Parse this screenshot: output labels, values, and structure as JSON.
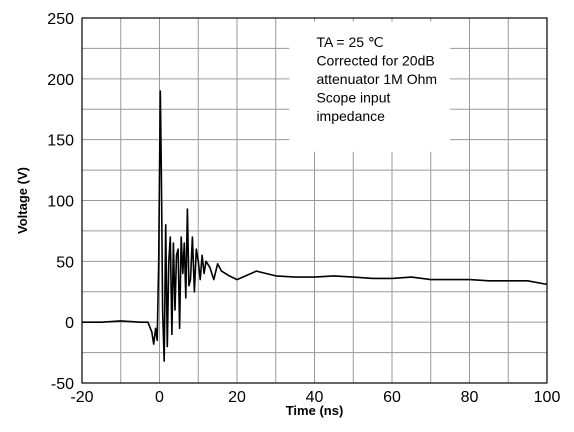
{
  "chart_data": {
    "type": "line",
    "title": "",
    "xlabel": "Time  (ns)",
    "ylabel": "Voltage (V)",
    "xlim": [
      -20,
      100
    ],
    "ylim": [
      -50,
      250
    ],
    "xticks": [
      -20,
      0,
      20,
      40,
      60,
      80,
      100
    ],
    "yticks": [
      -50,
      0,
      50,
      100,
      150,
      200,
      250
    ],
    "xgrid_step": 10,
    "ygrid_step": 25,
    "grid": true,
    "annotation": [
      "TA = 25 ℃",
      "Corrected for 20dB",
      "attenuator 1M Ohm",
      "Scope input",
      "impedance"
    ],
    "series": [
      {
        "color": "#000000",
        "x": [
          -20,
          -15,
          -10,
          -5,
          -3,
          -2,
          -1.5,
          -1,
          -0.6,
          -0.2,
          0.2,
          0.5,
          0.8,
          1.2,
          1.6,
          2,
          2.4,
          2.8,
          3.2,
          3.6,
          4,
          4.4,
          4.8,
          5.2,
          5.6,
          6,
          6.4,
          6.8,
          7.2,
          7.6,
          8,
          8.5,
          9,
          9.5,
          10,
          10.5,
          11,
          11.5,
          12,
          13,
          14,
          15,
          16,
          18,
          20,
          25,
          30,
          35,
          40,
          45,
          50,
          55,
          60,
          65,
          70,
          75,
          80,
          85,
          90,
          95,
          100
        ],
        "y": [
          0,
          0,
          1,
          0,
          0,
          -8,
          -18,
          -5,
          -15,
          50,
          190,
          120,
          10,
          -32,
          80,
          -20,
          50,
          70,
          -10,
          65,
          10,
          55,
          60,
          -5,
          70,
          40,
          65,
          20,
          93,
          30,
          35,
          70,
          25,
          60,
          50,
          35,
          55,
          40,
          50,
          45,
          35,
          48,
          42,
          38,
          35,
          42,
          38,
          37,
          37,
          38,
          37,
          36,
          36,
          37,
          35,
          35,
          35,
          34,
          34,
          34,
          31
        ]
      }
    ]
  }
}
